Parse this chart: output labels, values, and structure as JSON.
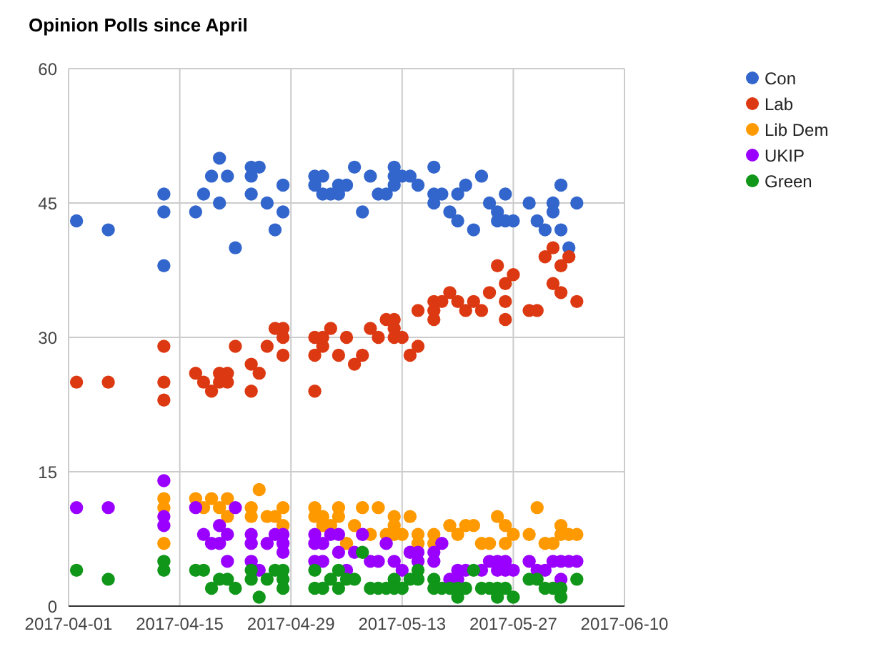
{
  "chart_data": {
    "type": "scatter",
    "title": "Opinion Polls since April",
    "xlim": [
      "2017-04-01",
      "2017-06-10"
    ],
    "xticks": [
      "2017-04-01",
      "2017-04-15",
      "2017-04-29",
      "2017-05-13",
      "2017-05-27",
      "2017-06-10"
    ],
    "ylim": [
      0,
      60
    ],
    "yticks": [
      0,
      15,
      30,
      45,
      60
    ],
    "grid": true,
    "legend": "top right",
    "marker": "circle",
    "series": [
      {
        "name": "Con",
        "color": "#3366cc",
        "x": [
          "2017-04-02",
          "2017-04-06",
          "2017-04-13",
          "2017-04-13",
          "2017-04-13",
          "2017-04-17",
          "2017-04-18",
          "2017-04-19",
          "2017-04-20",
          "2017-04-20",
          "2017-04-21",
          "2017-04-22",
          "2017-04-24",
          "2017-04-24",
          "2017-04-24",
          "2017-04-25",
          "2017-04-26",
          "2017-04-27",
          "2017-04-28",
          "2017-04-28",
          "2017-05-02",
          "2017-05-02",
          "2017-05-03",
          "2017-05-03",
          "2017-05-04",
          "2017-05-05",
          "2017-05-05",
          "2017-05-06",
          "2017-05-07",
          "2017-05-08",
          "2017-05-09",
          "2017-05-10",
          "2017-05-11",
          "2017-05-12",
          "2017-05-12",
          "2017-05-12",
          "2017-05-13",
          "2017-05-14",
          "2017-05-15",
          "2017-05-17",
          "2017-05-17",
          "2017-05-17",
          "2017-05-18",
          "2017-05-19",
          "2017-05-20",
          "2017-05-20",
          "2017-05-21",
          "2017-05-22",
          "2017-05-23",
          "2017-05-24",
          "2017-05-25",
          "2017-05-25",
          "2017-05-26",
          "2017-05-26",
          "2017-05-27",
          "2017-05-29",
          "2017-05-30",
          "2017-05-31",
          "2017-06-01",
          "2017-06-01",
          "2017-06-02",
          "2017-06-02",
          "2017-06-03",
          "2017-06-04"
        ],
        "values": [
          43,
          42,
          46,
          44,
          38,
          44,
          46,
          48,
          50,
          45,
          48,
          40,
          49,
          48,
          46,
          49,
          45,
          42,
          47,
          44,
          48,
          47,
          48,
          46,
          46,
          47,
          46,
          47,
          49,
          44,
          48,
          46,
          46,
          49,
          48,
          47,
          48,
          48,
          47,
          49,
          46,
          45,
          46,
          44,
          46,
          43,
          47,
          42,
          48,
          45,
          44,
          43,
          46,
          43,
          43,
          45,
          43,
          42,
          45,
          44,
          47,
          42,
          40,
          45
        ]
      },
      {
        "name": "Lab",
        "color": "#dc3912",
        "x": [
          "2017-04-02",
          "2017-04-06",
          "2017-04-13",
          "2017-04-13",
          "2017-04-13",
          "2017-04-17",
          "2017-04-18",
          "2017-04-19",
          "2017-04-20",
          "2017-04-20",
          "2017-04-21",
          "2017-04-21",
          "2017-04-22",
          "2017-04-24",
          "2017-04-24",
          "2017-04-25",
          "2017-04-26",
          "2017-04-27",
          "2017-04-28",
          "2017-04-28",
          "2017-04-28",
          "2017-05-02",
          "2017-05-02",
          "2017-05-02",
          "2017-05-03",
          "2017-05-03",
          "2017-05-04",
          "2017-05-05",
          "2017-05-06",
          "2017-05-07",
          "2017-05-08",
          "2017-05-09",
          "2017-05-10",
          "2017-05-11",
          "2017-05-12",
          "2017-05-12",
          "2017-05-12",
          "2017-05-13",
          "2017-05-14",
          "2017-05-15",
          "2017-05-15",
          "2017-05-17",
          "2017-05-17",
          "2017-05-17",
          "2017-05-18",
          "2017-05-19",
          "2017-05-20",
          "2017-05-21",
          "2017-05-22",
          "2017-05-23",
          "2017-05-24",
          "2017-05-25",
          "2017-05-26",
          "2017-05-26",
          "2017-05-26",
          "2017-05-27",
          "2017-05-29",
          "2017-05-30",
          "2017-05-31",
          "2017-06-01",
          "2017-06-01",
          "2017-06-02",
          "2017-06-02",
          "2017-06-03",
          "2017-06-04"
        ],
        "values": [
          25,
          25,
          29,
          25,
          23,
          26,
          25,
          24,
          26,
          25,
          26,
          25,
          29,
          27,
          24,
          26,
          29,
          31,
          31,
          30,
          28,
          30,
          28,
          24,
          30,
          29,
          31,
          28,
          30,
          27,
          28,
          31,
          30,
          32,
          32,
          31,
          30,
          30,
          28,
          33,
          29,
          34,
          33,
          32,
          34,
          35,
          34,
          33,
          34,
          33,
          35,
          38,
          36,
          34,
          32,
          37,
          33,
          33,
          39,
          40,
          36,
          38,
          35,
          39,
          34
        ]
      },
      {
        "name": "Lib Dem",
        "color": "#ff9900",
        "x": [
          "2017-04-13",
          "2017-04-13",
          "2017-04-13",
          "2017-04-17",
          "2017-04-18",
          "2017-04-19",
          "2017-04-20",
          "2017-04-21",
          "2017-04-21",
          "2017-04-24",
          "2017-04-24",
          "2017-04-25",
          "2017-04-26",
          "2017-04-27",
          "2017-04-28",
          "2017-04-28",
          "2017-05-02",
          "2017-05-02",
          "2017-05-03",
          "2017-05-03",
          "2017-05-04",
          "2017-05-05",
          "2017-05-05",
          "2017-05-06",
          "2017-05-07",
          "2017-05-08",
          "2017-05-09",
          "2017-05-10",
          "2017-05-11",
          "2017-05-12",
          "2017-05-12",
          "2017-05-12",
          "2017-05-13",
          "2017-05-14",
          "2017-05-15",
          "2017-05-15",
          "2017-05-17",
          "2017-05-17",
          "2017-05-19",
          "2017-05-20",
          "2017-05-21",
          "2017-05-22",
          "2017-05-23",
          "2017-05-24",
          "2017-05-25",
          "2017-05-26",
          "2017-05-26",
          "2017-05-27",
          "2017-05-29",
          "2017-05-30",
          "2017-05-31",
          "2017-06-01",
          "2017-06-02",
          "2017-06-02",
          "2017-06-03",
          "2017-06-04"
        ],
        "values": [
          12,
          11,
          7,
          12,
          11,
          12,
          11,
          12,
          10,
          11,
          10,
          13,
          10,
          10,
          11,
          9,
          11,
          10,
          10,
          9,
          9,
          11,
          10,
          7,
          9,
          11,
          8,
          11,
          8,
          10,
          9,
          8,
          8,
          10,
          8,
          7,
          8,
          7,
          9,
          8,
          9,
          9,
          7,
          7,
          10,
          9,
          7,
          8,
          8,
          11,
          7,
          7,
          9,
          8,
          8,
          8
        ]
      },
      {
        "name": "UKIP",
        "color": "#9900ff",
        "x": [
          "2017-04-02",
          "2017-04-06",
          "2017-04-13",
          "2017-04-13",
          "2017-04-13",
          "2017-04-17",
          "2017-04-18",
          "2017-04-19",
          "2017-04-20",
          "2017-04-20",
          "2017-04-21",
          "2017-04-21",
          "2017-04-22",
          "2017-04-24",
          "2017-04-24",
          "2017-04-24",
          "2017-04-25",
          "2017-04-26",
          "2017-04-27",
          "2017-04-28",
          "2017-04-28",
          "2017-04-28",
          "2017-05-02",
          "2017-05-02",
          "2017-05-02",
          "2017-05-03",
          "2017-05-03",
          "2017-05-04",
          "2017-05-05",
          "2017-05-05",
          "2017-05-06",
          "2017-05-07",
          "2017-05-08",
          "2017-05-09",
          "2017-05-10",
          "2017-05-11",
          "2017-05-12",
          "2017-05-13",
          "2017-05-14",
          "2017-05-15",
          "2017-05-15",
          "2017-05-17",
          "2017-05-17",
          "2017-05-18",
          "2017-05-19",
          "2017-05-20",
          "2017-05-20",
          "2017-05-21",
          "2017-05-23",
          "2017-05-24",
          "2017-05-25",
          "2017-05-25",
          "2017-05-26",
          "2017-05-26",
          "2017-05-27",
          "2017-05-29",
          "2017-05-30",
          "2017-05-31",
          "2017-06-01",
          "2017-06-02",
          "2017-06-02",
          "2017-06-03",
          "2017-06-04"
        ],
        "values": [
          11,
          11,
          14,
          10,
          9,
          11,
          8,
          7,
          9,
          7,
          8,
          5,
          11,
          8,
          7,
          5,
          4,
          7,
          8,
          8,
          7,
          6,
          8,
          7,
          5,
          7,
          5,
          8,
          8,
          6,
          4,
          6,
          8,
          5,
          5,
          7,
          5,
          4,
          6,
          6,
          5,
          6,
          5,
          7,
          3,
          4,
          3,
          4,
          4,
          5,
          5,
          4,
          5,
          4,
          4,
          5,
          4,
          4,
          5,
          5,
          3,
          5,
          5
        ]
      },
      {
        "name": "Green",
        "color": "#109618",
        "x": [
          "2017-04-02",
          "2017-04-06",
          "2017-04-13",
          "2017-04-13",
          "2017-04-17",
          "2017-04-18",
          "2017-04-19",
          "2017-04-20",
          "2017-04-21",
          "2017-04-22",
          "2017-04-24",
          "2017-04-24",
          "2017-04-25",
          "2017-04-26",
          "2017-04-27",
          "2017-04-28",
          "2017-04-28",
          "2017-04-28",
          "2017-05-02",
          "2017-05-02",
          "2017-05-03",
          "2017-05-04",
          "2017-05-05",
          "2017-05-05",
          "2017-05-06",
          "2017-05-07",
          "2017-05-08",
          "2017-05-09",
          "2017-05-10",
          "2017-05-11",
          "2017-05-12",
          "2017-05-12",
          "2017-05-13",
          "2017-05-14",
          "2017-05-15",
          "2017-05-15",
          "2017-05-17",
          "2017-05-17",
          "2017-05-18",
          "2017-05-19",
          "2017-05-20",
          "2017-05-20",
          "2017-05-21",
          "2017-05-22",
          "2017-05-23",
          "2017-05-24",
          "2017-05-25",
          "2017-05-25",
          "2017-05-26",
          "2017-05-27",
          "2017-05-29",
          "2017-05-30",
          "2017-05-31",
          "2017-06-01",
          "2017-06-02",
          "2017-06-02",
          "2017-06-04"
        ],
        "values": [
          4,
          3,
          5,
          4,
          4,
          4,
          2,
          3,
          3,
          2,
          4,
          3,
          1,
          3,
          4,
          4,
          3,
          2,
          4,
          2,
          2,
          3,
          4,
          2,
          3,
          3,
          6,
          2,
          2,
          2,
          3,
          2,
          2,
          3,
          4,
          3,
          3,
          2,
          2,
          2,
          2,
          1,
          2,
          4,
          2,
          2,
          2,
          1,
          2,
          1,
          3,
          3,
          2,
          2,
          2,
          1,
          3
        ]
      }
    ]
  }
}
